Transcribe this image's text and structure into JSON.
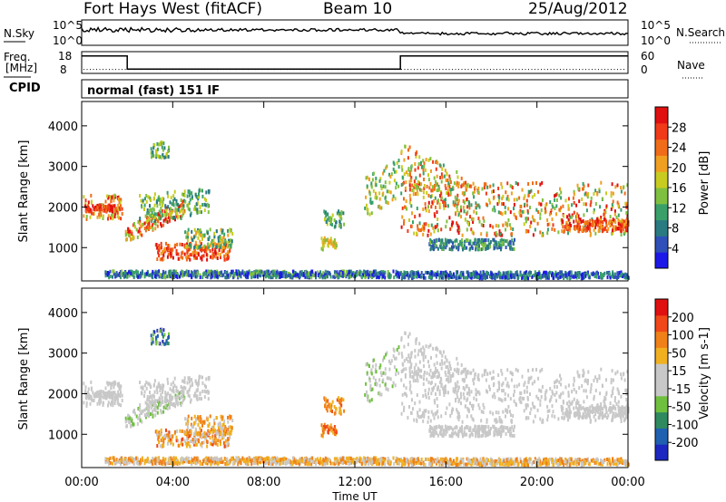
{
  "header": {
    "station": "Fort Hays West (fitACF)",
    "beam": "Beam 10",
    "date": "25/Aug/2012"
  },
  "top_panels": {
    "nsky_label": "N.Sky",
    "nsky_ticks": [
      "10^5",
      "10^0"
    ],
    "nsearch_label": "N.Search",
    "nsearch_ticks": [
      "10^5",
      "10^0"
    ],
    "freq_label": "Freq.",
    "freq_unit": "[MHz]",
    "freq_ticks": [
      "18",
      "8"
    ],
    "nave_label": "Nave",
    "nave_ticks": [
      "60",
      "0"
    ],
    "cpid_label": "CPID",
    "cpid_value": "normal (fast) 151 IF",
    "freq_steps": [
      [
        0,
        16
      ],
      [
        2,
        10
      ],
      [
        14,
        16
      ],
      [
        24,
        16
      ]
    ],
    "nave_level": 0.18
  },
  "chart_data": [
    {
      "type": "heatmap",
      "name": "power-panel",
      "ylabel": "Slant Range [km]",
      "xlabel": "",
      "xlim": [
        0,
        24
      ],
      "ylim": [
        180,
        4600
      ],
      "yticks": [
        "1000",
        "2000",
        "3000",
        "4000"
      ],
      "colorbar": {
        "label": "Power [dB]",
        "ticks": [
          "28",
          "24",
          "20",
          "16",
          "12",
          "8",
          "4"
        ],
        "colors": [
          "#1c18e8",
          "#2f50b8",
          "#2a7a82",
          "#39a06a",
          "#80c040",
          "#c8cc20",
          "#f0a020",
          "#f06c18",
          "#f03a18",
          "#e01010"
        ]
      }
    },
    {
      "type": "heatmap",
      "name": "velocity-panel",
      "ylabel": "Slant Range [km]",
      "xlabel": "Time UT",
      "xlim": [
        0,
        24
      ],
      "ylim": [
        180,
        4600
      ],
      "yticks": [
        "1000",
        "2000",
        "3000",
        "4000"
      ],
      "xticks": [
        "00:00",
        "04:00",
        "08:00",
        "12:00",
        "16:00",
        "20:00",
        "00:00"
      ],
      "colorbar": {
        "label": "Velocity [m s-1]",
        "ticks": [
          "200",
          "100",
          "50",
          "15",
          "-15",
          "-50",
          "-100",
          "-200"
        ],
        "colors": [
          "#1c28c0",
          "#2060b0",
          "#2f8a60",
          "#70c040",
          "#c8c8c8",
          "#c8c8c8",
          "#f0b020",
          "#f08018",
          "#f04818",
          "#e01010"
        ]
      }
    }
  ]
}
